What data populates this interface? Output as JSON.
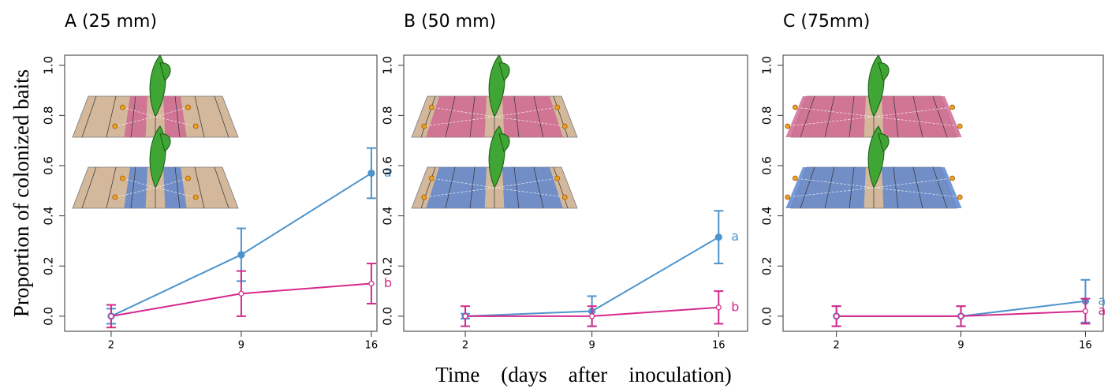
{
  "chart_data": [
    {
      "type": "line",
      "title": "A (25 mm)",
      "ylabel": "Proportion of colonized baits",
      "x": [
        2,
        9,
        16
      ],
      "xlim": [
        -0.5,
        16.3
      ],
      "xticks": [
        2,
        9,
        16
      ],
      "ylim": [
        -0.06,
        1.04
      ],
      "yticks": [
        {
          "value": 0,
          "label": "0.0"
        },
        0.2,
        0.4,
        0.6,
        0.8,
        {
          "value": 1,
          "label": "1.0"
        }
      ],
      "series": [
        {
          "color": "#4e94cc",
          "values": [
            0,
            0.245,
            0.57
          ],
          "errors": [
            0.03,
            0.105,
            0.1
          ],
          "label": "a"
        },
        {
          "color": "#d62a8c",
          "values": [
            0,
            0.09,
            0.13
          ],
          "errors": [
            0.045,
            0.09,
            0.08
          ],
          "label": "b"
        }
      ]
    },
    {
      "type": "line",
      "title": "B (50 mm)",
      "xlabel": "Time    (days    after    inoculation)",
      "x": [
        2,
        9,
        16
      ],
      "xlim": [
        -1.4,
        17.6
      ],
      "xticks": [
        2,
        9,
        16
      ],
      "ylim": [
        -0.06,
        1.04
      ],
      "yticks": [
        {
          "value": 0,
          "label": "0.0"
        },
        0.2,
        0.4,
        0.6,
        0.8,
        {
          "value": 1,
          "label": "1.0"
        }
      ],
      "series": [
        {
          "color": "#4e94cc",
          "values": [
            0,
            0.02,
            0.315
          ],
          "errors": [
            0.01,
            0.06,
            0.105
          ],
          "label": "a"
        },
        {
          "color": "#d62a8c",
          "values": [
            0,
            0,
            0.035
          ],
          "errors": [
            0.04,
            0.04,
            0.065
          ],
          "label": "b"
        }
      ]
    },
    {
      "type": "line",
      "title": "C (75mm)",
      "x": [
        2,
        9,
        16
      ],
      "xlim": [
        -1,
        17
      ],
      "xticks": [
        2,
        9,
        16
      ],
      "ylim": [
        -0.06,
        1.04
      ],
      "yticks": [
        {
          "value": 0,
          "label": "0.0"
        },
        0.2,
        0.4,
        0.6,
        0.8,
        {
          "value": 1,
          "label": "1.0"
        }
      ],
      "series": [
        {
          "color": "#4e94cc",
          "values": [
            0,
            0,
            0.06
          ],
          "errors": [
            0.04,
            0.04,
            0.085
          ],
          "label": "a"
        },
        {
          "color": "#d62a8c",
          "values": [
            0,
            0,
            0.02
          ],
          "errors": [
            0.04,
            0.04,
            0.05
          ],
          "label": "a"
        }
      ]
    }
  ]
}
